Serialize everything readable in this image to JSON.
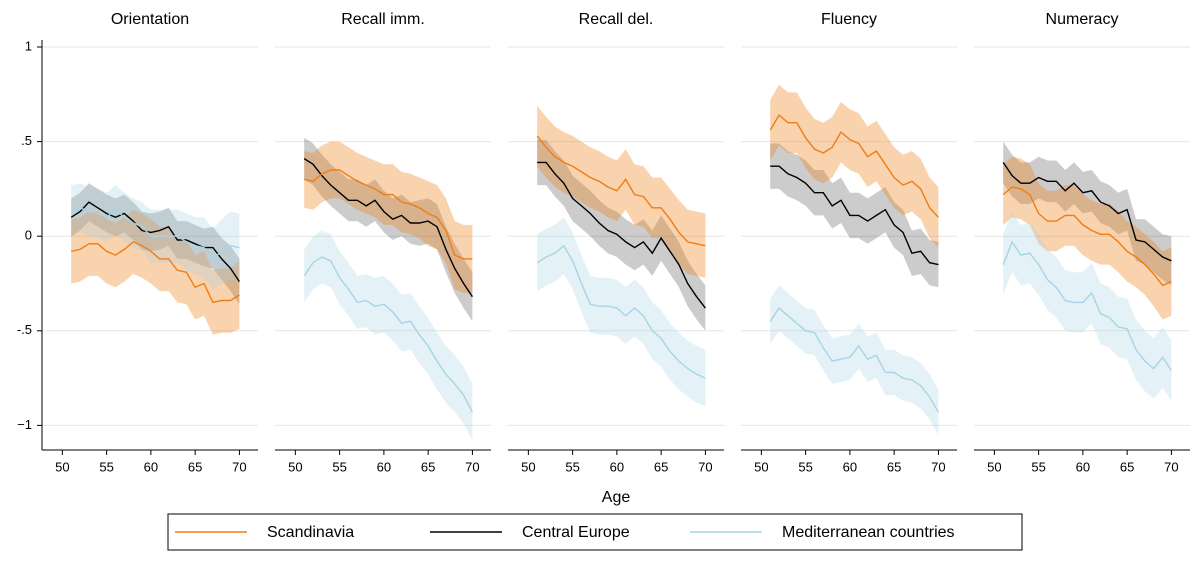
{
  "x_label": "Age",
  "chart_data": [
    {
      "type": "line",
      "title": "Orientation",
      "x": [
        51,
        52,
        53,
        54,
        55,
        56,
        57,
        58,
        59,
        60,
        61,
        62,
        63,
        64,
        65,
        66,
        67,
        68,
        69,
        70
      ],
      "xlim": [
        47.7,
        72.1
      ],
      "xticks": [
        50,
        55,
        60,
        65,
        70
      ],
      "ylim": [
        -1.13,
        1.037
      ],
      "yticks": [
        {
          "value": -1,
          "label": "−1"
        },
        {
          "value": -0.5,
          "label": "-.5"
        },
        0,
        {
          "value": 0.5,
          "label": ".5"
        },
        1
      ],
      "grid": true,
      "series": [
        {
          "name": "Scandinavia",
          "color": "#ef7d16",
          "values": [
            -0.08,
            -0.07,
            -0.04,
            -0.04,
            -0.08,
            -0.1,
            -0.07,
            -0.03,
            -0.05,
            -0.08,
            -0.12,
            -0.12,
            -0.18,
            -0.19,
            -0.27,
            -0.25,
            -0.35,
            -0.34,
            -0.34,
            -0.31
          ],
          "errors": [
            0.17,
            0.17,
            0.17,
            0.17,
            0.17,
            0.17,
            0.17,
            0.17,
            0.17,
            0.17,
            0.17,
            0.17,
            0.17,
            0.17,
            0.17,
            0.17,
            0.17,
            0.17,
            0.17,
            0.18
          ]
        },
        {
          "name": "Central Europe",
          "color": "#000000",
          "values": [
            0.1,
            0.13,
            0.18,
            0.15,
            0.12,
            0.1,
            0.12,
            0.08,
            0.03,
            0.02,
            0.03,
            0.05,
            -0.02,
            -0.02,
            -0.04,
            -0.06,
            -0.06,
            -0.12,
            -0.17,
            -0.24
          ],
          "errors": [
            0.1,
            0.1,
            0.1,
            0.1,
            0.1,
            0.1,
            0.1,
            0.1,
            0.1,
            0.1,
            0.1,
            0.1,
            0.1,
            0.1,
            0.1,
            0.1,
            0.11,
            0.11,
            0.12,
            0.12
          ]
        },
        {
          "name": "Mediterranean countries",
          "color": "#a6d4e6",
          "values": [
            0.14,
            0.15,
            0.13,
            0.12,
            0.1,
            0.14,
            0.1,
            0.07,
            0.05,
            0.0,
            0.0,
            0.0,
            0.0,
            -0.03,
            -0.05,
            -0.06,
            -0.12,
            -0.08,
            -0.05,
            -0.06
          ],
          "errors": [
            0.13,
            0.13,
            0.13,
            0.13,
            0.13,
            0.13,
            0.13,
            0.13,
            0.13,
            0.14,
            0.14,
            0.14,
            0.14,
            0.15,
            0.15,
            0.16,
            0.16,
            0.17,
            0.18,
            0.18
          ]
        }
      ]
    },
    {
      "type": "line",
      "title": "Recall imm.",
      "x": [
        51,
        52,
        53,
        54,
        55,
        56,
        57,
        58,
        59,
        60,
        61,
        62,
        63,
        64,
        65,
        66,
        67,
        68,
        69,
        70
      ],
      "xlim": [
        47.7,
        72.1
      ],
      "xticks": [
        50,
        55,
        60,
        65,
        70
      ],
      "ylim": [
        -1.13,
        1.037
      ],
      "series": [
        {
          "color": "#ef7d16",
          "values": [
            0.3,
            0.29,
            0.33,
            0.35,
            0.35,
            0.32,
            0.29,
            0.27,
            0.25,
            0.22,
            0.22,
            0.18,
            0.17,
            0.15,
            0.12,
            0.1,
            0.03,
            -0.1,
            -0.12,
            -0.12
          ],
          "errors": [
            0.15,
            0.15,
            0.15,
            0.15,
            0.15,
            0.15,
            0.15,
            0.15,
            0.15,
            0.16,
            0.16,
            0.16,
            0.16,
            0.16,
            0.17,
            0.17,
            0.17,
            0.18,
            0.18,
            0.18
          ]
        },
        {
          "color": "#000000",
          "values": [
            0.41,
            0.38,
            0.32,
            0.27,
            0.23,
            0.19,
            0.19,
            0.16,
            0.19,
            0.13,
            0.09,
            0.11,
            0.07,
            0.07,
            0.08,
            0.05,
            -0.07,
            -0.17,
            -0.25,
            -0.32
          ],
          "errors": [
            0.11,
            0.11,
            0.11,
            0.11,
            0.11,
            0.11,
            0.11,
            0.11,
            0.11,
            0.11,
            0.11,
            0.11,
            0.11,
            0.12,
            0.12,
            0.12,
            0.12,
            0.13,
            0.13,
            0.13
          ]
        },
        {
          "color": "#a6d4e6",
          "values": [
            -0.21,
            -0.14,
            -0.11,
            -0.13,
            -0.22,
            -0.28,
            -0.35,
            -0.34,
            -0.37,
            -0.36,
            -0.4,
            -0.46,
            -0.45,
            -0.52,
            -0.58,
            -0.66,
            -0.73,
            -0.78,
            -0.84,
            -0.93
          ],
          "errors": [
            0.14,
            0.14,
            0.14,
            0.14,
            0.14,
            0.14,
            0.14,
            0.14,
            0.15,
            0.15,
            0.15,
            0.15,
            0.15,
            0.15,
            0.15,
            0.15,
            0.15,
            0.15,
            0.15,
            0.15
          ]
        }
      ]
    },
    {
      "type": "line",
      "title": "Recall del.",
      "x": [
        51,
        52,
        53,
        54,
        55,
        56,
        57,
        58,
        59,
        60,
        61,
        62,
        63,
        64,
        65,
        66,
        67,
        68,
        69,
        70
      ],
      "xlim": [
        47.7,
        72.1
      ],
      "xticks": [
        50,
        55,
        60,
        65,
        70
      ],
      "ylim": [
        -1.13,
        1.037
      ],
      "series": [
        {
          "color": "#ef7d16",
          "values": [
            0.53,
            0.47,
            0.42,
            0.39,
            0.37,
            0.34,
            0.31,
            0.29,
            0.26,
            0.24,
            0.3,
            0.22,
            0.21,
            0.15,
            0.15,
            0.09,
            0.02,
            -0.03,
            -0.04,
            -0.05
          ],
          "errors": [
            0.16,
            0.16,
            0.16,
            0.16,
            0.16,
            0.16,
            0.16,
            0.16,
            0.16,
            0.16,
            0.16,
            0.16,
            0.16,
            0.16,
            0.16,
            0.16,
            0.17,
            0.17,
            0.17,
            0.17
          ]
        },
        {
          "color": "#000000",
          "values": [
            0.39,
            0.39,
            0.33,
            0.28,
            0.2,
            0.16,
            0.12,
            0.07,
            0.03,
            0.01,
            -0.03,
            -0.06,
            -0.03,
            -0.09,
            -0.01,
            -0.08,
            -0.15,
            -0.25,
            -0.32,
            -0.38
          ],
          "errors": [
            0.12,
            0.12,
            0.12,
            0.12,
            0.12,
            0.12,
            0.12,
            0.12,
            0.12,
            0.12,
            0.12,
            0.12,
            0.12,
            0.12,
            0.12,
            0.12,
            0.12,
            0.12,
            0.12,
            0.12
          ]
        },
        {
          "color": "#a6d4e6",
          "values": [
            -0.14,
            -0.11,
            -0.09,
            -0.05,
            -0.13,
            -0.25,
            -0.36,
            -0.37,
            -0.37,
            -0.38,
            -0.42,
            -0.38,
            -0.42,
            -0.5,
            -0.54,
            -0.61,
            -0.66,
            -0.7,
            -0.73,
            -0.75
          ],
          "errors": [
            0.15,
            0.15,
            0.15,
            0.15,
            0.15,
            0.15,
            0.15,
            0.15,
            0.15,
            0.15,
            0.15,
            0.15,
            0.15,
            0.15,
            0.15,
            0.15,
            0.15,
            0.15,
            0.15,
            0.15
          ]
        }
      ]
    },
    {
      "type": "line",
      "title": "Fluency",
      "x": [
        51,
        52,
        53,
        54,
        55,
        56,
        57,
        58,
        59,
        60,
        61,
        62,
        63,
        64,
        65,
        66,
        67,
        68,
        69,
        70
      ],
      "xlim": [
        47.7,
        72.1
      ],
      "xticks": [
        50,
        55,
        60,
        65,
        70
      ],
      "ylim": [
        -1.13,
        1.037
      ],
      "series": [
        {
          "color": "#ef7d16",
          "values": [
            0.56,
            0.64,
            0.6,
            0.6,
            0.52,
            0.46,
            0.44,
            0.47,
            0.55,
            0.51,
            0.49,
            0.42,
            0.45,
            0.38,
            0.31,
            0.27,
            0.29,
            0.25,
            0.15,
            0.1
          ],
          "errors": [
            0.16,
            0.16,
            0.16,
            0.16,
            0.16,
            0.16,
            0.16,
            0.16,
            0.16,
            0.16,
            0.16,
            0.16,
            0.16,
            0.16,
            0.16,
            0.16,
            0.16,
            0.16,
            0.16,
            0.16
          ]
        },
        {
          "color": "#000000",
          "values": [
            0.37,
            0.37,
            0.33,
            0.31,
            0.28,
            0.23,
            0.23,
            0.16,
            0.19,
            0.11,
            0.11,
            0.08,
            0.11,
            0.14,
            0.06,
            0.02,
            -0.09,
            -0.08,
            -0.14,
            -0.15
          ],
          "errors": [
            0.12,
            0.12,
            0.12,
            0.12,
            0.12,
            0.12,
            0.12,
            0.12,
            0.12,
            0.12,
            0.12,
            0.12,
            0.12,
            0.12,
            0.12,
            0.12,
            0.12,
            0.12,
            0.12,
            0.12
          ]
        },
        {
          "color": "#a6d4e6",
          "values": [
            -0.45,
            -0.38,
            -0.42,
            -0.46,
            -0.5,
            -0.51,
            -0.59,
            -0.66,
            -0.65,
            -0.64,
            -0.58,
            -0.65,
            -0.63,
            -0.72,
            -0.72,
            -0.75,
            -0.76,
            -0.79,
            -0.85,
            -0.93
          ],
          "errors": [
            0.12,
            0.12,
            0.12,
            0.12,
            0.12,
            0.12,
            0.12,
            0.12,
            0.12,
            0.12,
            0.12,
            0.12,
            0.12,
            0.12,
            0.12,
            0.12,
            0.12,
            0.12,
            0.12,
            0.12
          ]
        }
      ]
    },
    {
      "type": "line",
      "title": "Numeracy",
      "x": [
        51,
        52,
        53,
        54,
        55,
        56,
        57,
        58,
        59,
        60,
        61,
        62,
        63,
        64,
        65,
        66,
        67,
        68,
        69,
        70
      ],
      "xlim": [
        47.7,
        72.1
      ],
      "xticks": [
        50,
        55,
        60,
        65,
        70
      ],
      "ylim": [
        -1.13,
        1.037
      ],
      "series": [
        {
          "color": "#ef7d16",
          "values": [
            0.22,
            0.26,
            0.25,
            0.22,
            0.12,
            0.08,
            0.08,
            0.11,
            0.11,
            0.06,
            0.03,
            0.01,
            0.01,
            -0.03,
            -0.08,
            -0.11,
            -0.15,
            -0.2,
            -0.26,
            -0.24
          ],
          "errors": [
            0.16,
            0.16,
            0.16,
            0.16,
            0.16,
            0.16,
            0.16,
            0.16,
            0.16,
            0.16,
            0.16,
            0.16,
            0.16,
            0.16,
            0.16,
            0.16,
            0.16,
            0.17,
            0.18,
            0.18
          ]
        },
        {
          "color": "#000000",
          "values": [
            0.39,
            0.32,
            0.28,
            0.28,
            0.31,
            0.29,
            0.29,
            0.24,
            0.28,
            0.23,
            0.24,
            0.18,
            0.16,
            0.12,
            0.14,
            -0.02,
            -0.03,
            -0.07,
            -0.11,
            -0.13
          ],
          "errors": [
            0.11,
            0.11,
            0.11,
            0.11,
            0.11,
            0.11,
            0.11,
            0.11,
            0.11,
            0.11,
            0.11,
            0.11,
            0.11,
            0.11,
            0.11,
            0.11,
            0.12,
            0.12,
            0.12,
            0.13
          ]
        },
        {
          "color": "#a6d4e6",
          "values": [
            -0.15,
            -0.03,
            -0.1,
            -0.09,
            -0.15,
            -0.23,
            -0.27,
            -0.34,
            -0.35,
            -0.35,
            -0.3,
            -0.41,
            -0.43,
            -0.48,
            -0.49,
            -0.6,
            -0.66,
            -0.7,
            -0.64,
            -0.71
          ],
          "errors": [
            0.16,
            0.16,
            0.16,
            0.16,
            0.16,
            0.16,
            0.16,
            0.16,
            0.16,
            0.16,
            0.16,
            0.16,
            0.16,
            0.16,
            0.16,
            0.16,
            0.16,
            0.16,
            0.16,
            0.16
          ]
        }
      ]
    }
  ]
}
